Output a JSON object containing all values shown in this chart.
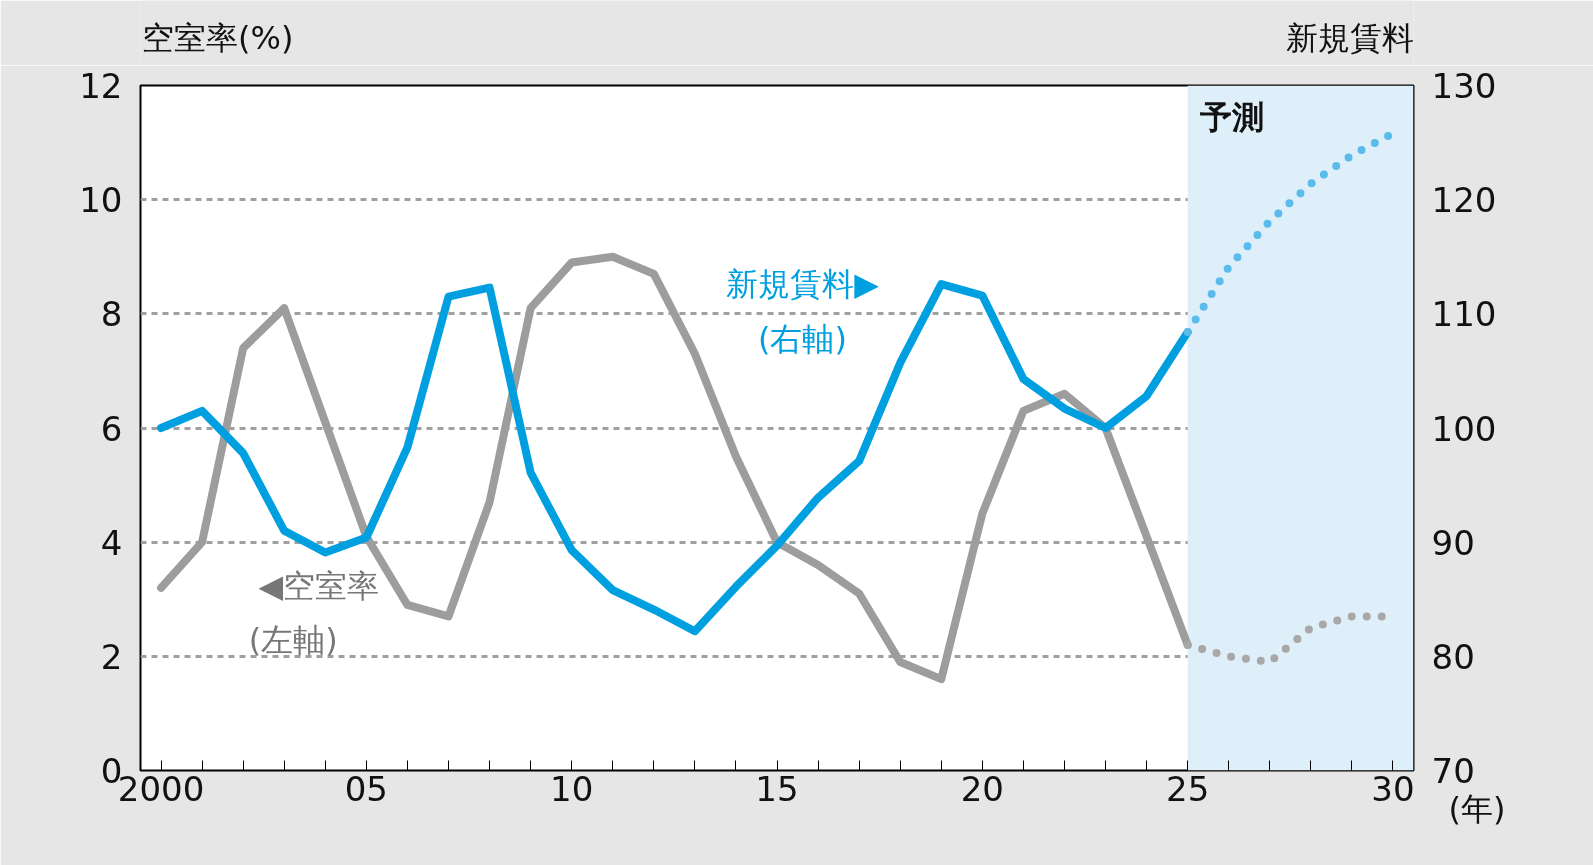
{
  "chart_data": {
    "type": "line",
    "ylabel": "空室率(%)",
    "y2label": "新規賃料",
    "xlabel": "(年)",
    "xlim": [
      1999.5,
      2030.5
    ],
    "xticks": [
      {
        "value": 2000,
        "label": "2000"
      },
      {
        "value": 2001,
        "label": null
      },
      {
        "value": 2002,
        "label": null
      },
      {
        "value": 2003,
        "label": null
      },
      {
        "value": 2004,
        "label": null
      },
      {
        "value": 2005,
        "label": "05"
      },
      {
        "value": 2006,
        "label": null
      },
      {
        "value": 2007,
        "label": null
      },
      {
        "value": 2008,
        "label": null
      },
      {
        "value": 2009,
        "label": null
      },
      {
        "value": 2010,
        "label": "10"
      },
      {
        "value": 2011,
        "label": null
      },
      {
        "value": 2012,
        "label": null
      },
      {
        "value": 2013,
        "label": null
      },
      {
        "value": 2014,
        "label": null
      },
      {
        "value": 2015,
        "label": "15"
      },
      {
        "value": 2016,
        "label": null
      },
      {
        "value": 2017,
        "label": null
      },
      {
        "value": 2018,
        "label": null
      },
      {
        "value": 2019,
        "label": null
      },
      {
        "value": 2020,
        "label": "20"
      },
      {
        "value": 2021,
        "label": null
      },
      {
        "value": 2022,
        "label": null
      },
      {
        "value": 2023,
        "label": null
      },
      {
        "value": 2024,
        "label": null
      },
      {
        "value": 2025,
        "label": "25"
      },
      {
        "value": 2026,
        "label": null
      },
      {
        "value": 2027,
        "label": null
      },
      {
        "value": 2028,
        "label": null
      },
      {
        "value": 2029,
        "label": null
      },
      {
        "value": 2030,
        "label": "30"
      }
    ],
    "ylim": [
      0,
      12
    ],
    "yticks": [
      0,
      2,
      4,
      6,
      8,
      10,
      12
    ],
    "y2lim": [
      70,
      130
    ],
    "y2ticks": [
      70,
      80,
      90,
      100,
      110,
      120,
      130
    ],
    "grid": "y",
    "marker": "none",
    "series": [
      {
        "color": "#9d9d9d",
        "line_style": "solid",
        "axis": "y",
        "x": [
          2000,
          2001,
          2002,
          2003,
          2004,
          2005,
          2006,
          2007,
          2008,
          2009,
          2010,
          2011,
          2012,
          2013,
          2014,
          2015,
          2016,
          2017,
          2018,
          2019,
          2020,
          2021,
          2022,
          2023,
          2024,
          2025
        ],
        "values": [
          3.2,
          4.0,
          7.4,
          8.1,
          6.1,
          4.1,
          2.9,
          2.7,
          4.7,
          8.1,
          8.9,
          9.0,
          8.7,
          7.3,
          5.5,
          4.0,
          3.6,
          3.1,
          1.9,
          1.6,
          4.5,
          6.3,
          6.6,
          6.0,
          4.1,
          2.2
        ]
      },
      {
        "color": "#a8a8a8",
        "line_style": "dotted",
        "axis": "y",
        "x": [
          2025,
          2026,
          2027,
          2028,
          2029,
          2030
        ],
        "values": [
          2.2,
          2.0,
          1.9,
          2.5,
          2.7,
          2.7
        ]
      },
      {
        "color": "#00a0e0",
        "line_style": "solid",
        "axis": "y2",
        "x": [
          2000,
          2001,
          2002,
          2003,
          2004,
          2005,
          2006,
          2007,
          2008,
          2009,
          2010,
          2011,
          2012,
          2013,
          2014,
          2015,
          2016,
          2017,
          2018,
          2019,
          2020,
          2021,
          2022,
          2023,
          2024,
          2025
        ],
        "values": [
          100.0,
          101.5,
          97.8,
          91.0,
          89.1,
          90.4,
          98.3,
          111.5,
          112.3,
          96.1,
          89.3,
          85.8,
          84.1,
          82.2,
          86.1,
          89.7,
          93.9,
          97.1,
          105.7,
          112.6,
          111.6,
          104.3,
          101.7,
          100.0,
          102.8,
          108.4
        ]
      },
      {
        "color": "#5bbcec",
        "line_style": "dotted",
        "axis": "y2",
        "x": [
          2025,
          2026,
          2027,
          2028,
          2029,
          2030
        ],
        "values": [
          108.4,
          114.1,
          118.1,
          121.4,
          123.9,
          125.8
        ]
      }
    ],
    "bands": [
      {
        "axis": "x",
        "from": 2025,
        "to": 2030.5,
        "label": "予測",
        "color": "#dfeffa"
      }
    ],
    "annotations": [
      "◀空室率",
      "(左軸)",
      "新規賃料▶",
      "(右軸)"
    ]
  }
}
